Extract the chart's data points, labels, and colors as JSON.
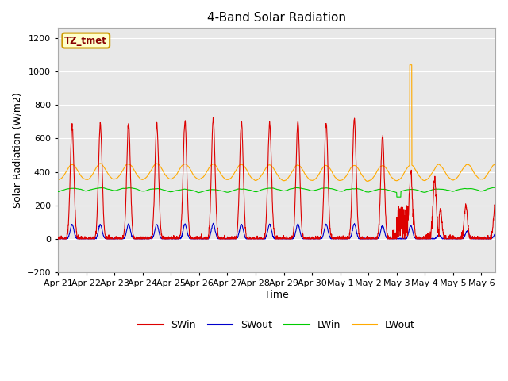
{
  "title": "4-Band Solar Radiation",
  "xlabel": "Time",
  "ylabel": "Solar Radiation (W/m2)",
  "ylim": [
    -200,
    1260
  ],
  "yticks": [
    -200,
    0,
    200,
    400,
    600,
    800,
    1000,
    1200
  ],
  "legend_label": "TZ_tmet",
  "line_colors": {
    "SWin": "#dd0000",
    "SWout": "#0000cc",
    "LWin": "#00cc00",
    "LWout": "#ffaa00"
  },
  "plot_bg_color": "#e8e8e8",
  "fig_bg_color": "#ffffff",
  "grid_color": "#ffffff",
  "title_fontsize": 11,
  "axis_label_fontsize": 9,
  "tick_label_fontsize": 8,
  "legend_fontsize": 9,
  "xlim": [
    0,
    15.5
  ],
  "tick_positions": [
    0,
    1,
    2,
    3,
    4,
    5,
    6,
    7,
    8,
    9,
    10,
    11,
    12,
    13,
    14,
    15
  ],
  "tick_labels": [
    "Apr 21",
    "Apr 22",
    "Apr 23",
    "Apr 24",
    "Apr 25",
    "Apr 26",
    "Apr 27",
    "Apr 28",
    "Apr 29",
    "Apr 30",
    "May 1",
    "May 2",
    "May 3",
    "May 4",
    "May 5",
    "May 6"
  ]
}
